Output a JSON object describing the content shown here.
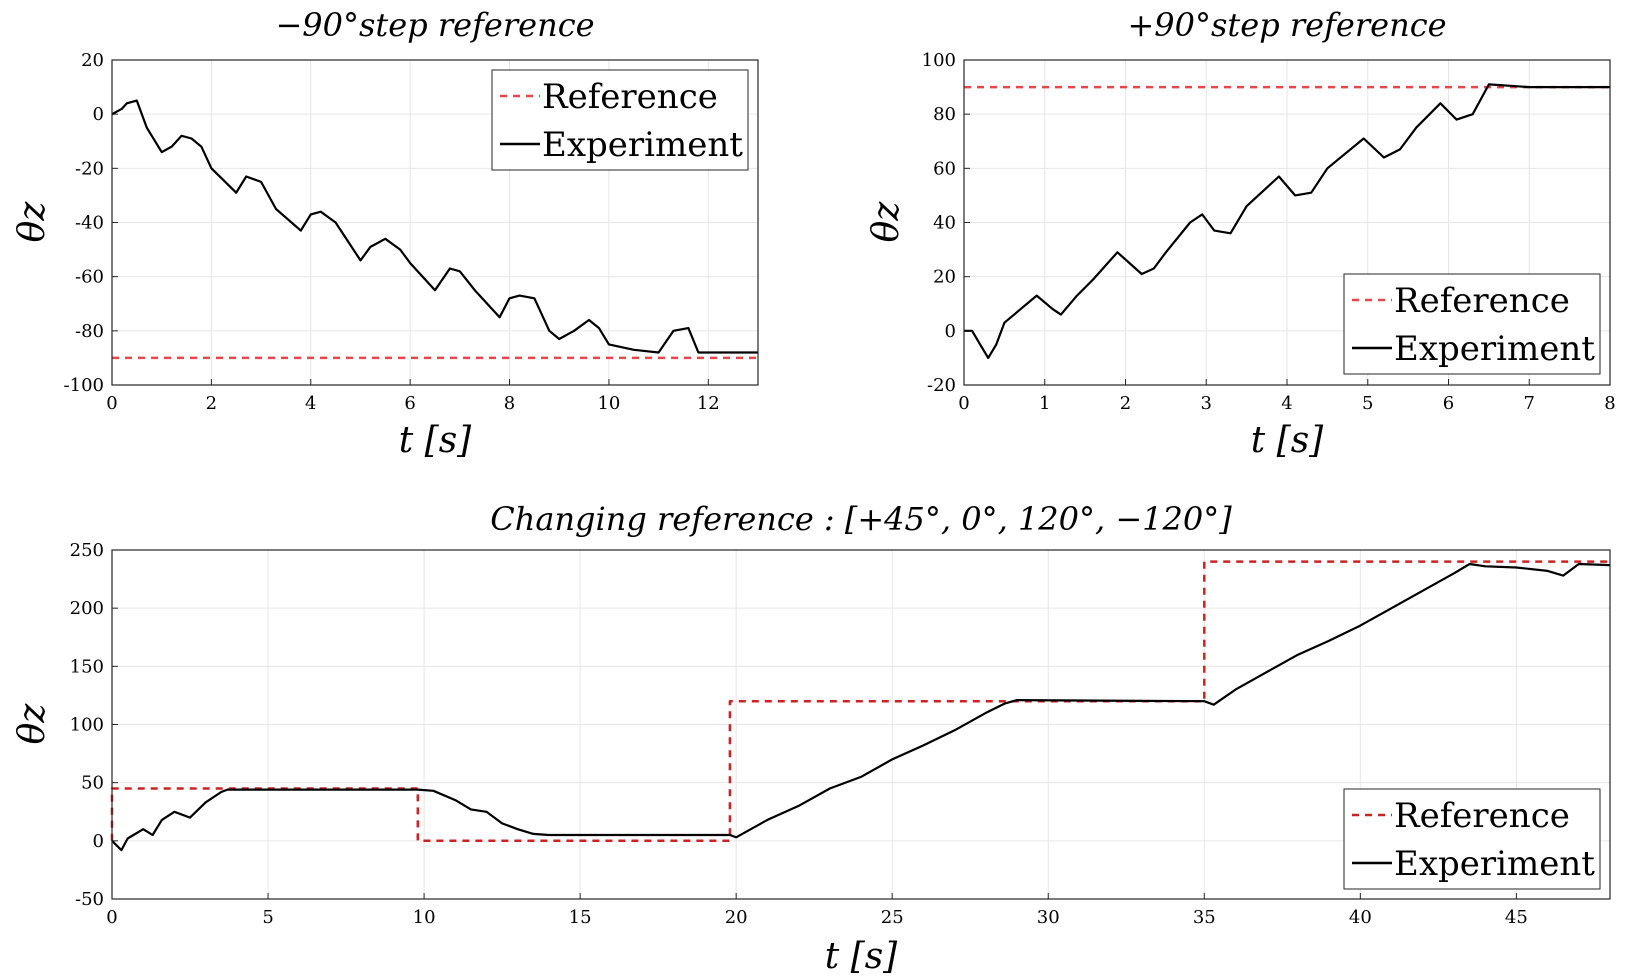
{
  "chart_data": [
    {
      "type": "line",
      "title": "−90°step reference",
      "xlabel": "t [s]",
      "ylabel": "θz",
      "xlim": [
        0,
        13
      ],
      "ylim": [
        -100,
        20
      ],
      "xticks": [
        0,
        2,
        4,
        6,
        8,
        10,
        12
      ],
      "xtick_labels": [
        "0",
        "2",
        "4",
        "6",
        "8",
        "10",
        "12"
      ],
      "yticks": [
        -100,
        -80,
        -60,
        -40,
        -20,
        0,
        20
      ],
      "ytick_labels": [
        "-100",
        "-80",
        "-60",
        "-40",
        "-20",
        "0",
        "20"
      ],
      "grid": true,
      "legend": "top-right",
      "series": [
        {
          "name": "Reference",
          "color": "#e8464a",
          "style": "dashed",
          "x": [
            0,
            13
          ],
          "y": [
            -90,
            -90
          ]
        },
        {
          "name": "Experiment",
          "color": "#000000",
          "style": "solid",
          "x": [
            0,
            0.2,
            0.3,
            0.5,
            0.7,
            1.0,
            1.2,
            1.4,
            1.6,
            1.8,
            2.0,
            2.5,
            2.7,
            3.0,
            3.3,
            3.8,
            4.0,
            4.2,
            4.5,
            5.0,
            5.2,
            5.5,
            5.8,
            6.0,
            6.5,
            6.8,
            7.0,
            7.3,
            7.8,
            8.0,
            8.2,
            8.5,
            8.8,
            9.0,
            9.3,
            9.6,
            9.8,
            10.0,
            10.5,
            11.0,
            11.3,
            11.6,
            11.8,
            12.0,
            12.5,
            13.0
          ],
          "y": [
            0,
            2,
            4,
            5,
            -5,
            -14,
            -12,
            -8,
            -9,
            -12,
            -20,
            -29,
            -23,
            -25,
            -35,
            -43,
            -37,
            -36,
            -40,
            -54,
            -49,
            -46,
            -50,
            -55,
            -65,
            -57,
            -58,
            -65,
            -75,
            -68,
            -67,
            -68,
            -80,
            -83,
            -80,
            -76,
            -79,
            -85,
            -87,
            -88,
            -80,
            -79,
            -88,
            -88,
            -88,
            -88
          ]
        }
      ]
    },
    {
      "type": "line",
      "title": "+90°step reference",
      "xlabel": "t [s]",
      "ylabel": "θz",
      "xlim": [
        0,
        8
      ],
      "ylim": [
        -20,
        100
      ],
      "xticks": [
        0,
        1,
        2,
        3,
        4,
        5,
        6,
        7,
        8
      ],
      "xtick_labels": [
        "0",
        "1",
        "2",
        "3",
        "4",
        "5",
        "6",
        "7",
        "8"
      ],
      "yticks": [
        -20,
        0,
        20,
        40,
        60,
        80,
        100
      ],
      "ytick_labels": [
        "-20",
        "0",
        "20",
        "40",
        "60",
        "80",
        "100"
      ],
      "grid": true,
      "legend": "bottom-right",
      "series": [
        {
          "name": "Reference",
          "color": "#e8464a",
          "style": "dashed",
          "x": [
            0,
            8
          ],
          "y": [
            90,
            90
          ]
        },
        {
          "name": "Experiment",
          "color": "#000000",
          "style": "solid",
          "x": [
            0,
            0.1,
            0.2,
            0.3,
            0.4,
            0.5,
            0.7,
            0.9,
            1.1,
            1.2,
            1.4,
            1.6,
            1.9,
            2.2,
            2.35,
            2.5,
            2.8,
            2.95,
            3.1,
            3.3,
            3.5,
            3.9,
            4.1,
            4.3,
            4.5,
            4.95,
            5.2,
            5.4,
            5.6,
            5.9,
            6.1,
            6.3,
            6.5,
            7.0,
            8.0
          ],
          "y": [
            0,
            0,
            -5,
            -10,
            -5,
            3,
            8,
            13,
            8,
            6,
            13,
            19,
            29,
            21,
            23,
            29,
            40,
            43,
            37,
            36,
            46,
            57,
            50,
            51,
            60,
            71,
            64,
            67,
            75,
            84,
            78,
            80,
            91,
            90,
            90
          ]
        }
      ]
    },
    {
      "type": "line",
      "title": "Changing reference : [+45°, 0°, 120°, −120°]",
      "xlabel": "t [s]",
      "ylabel": "θz",
      "xlim": [
        0,
        48
      ],
      "ylim": [
        -50,
        250
      ],
      "xticks": [
        0,
        5,
        10,
        15,
        20,
        25,
        30,
        35,
        40,
        45
      ],
      "xtick_labels": [
        "0",
        "5",
        "10",
        "15",
        "20",
        "25",
        "30",
        "35",
        "40",
        "45"
      ],
      "yticks": [
        -50,
        0,
        50,
        100,
        150,
        200,
        250
      ],
      "ytick_labels": [
        "-50",
        "0",
        "50",
        "100",
        "150",
        "200",
        "250"
      ],
      "grid": true,
      "legend": "bottom-right",
      "series": [
        {
          "name": "Reference",
          "color": "#cc2222",
          "style": "dashed",
          "x": [
            0,
            0,
            9.8,
            9.8,
            19.8,
            19.8,
            35,
            35,
            48
          ],
          "y": [
            0,
            45,
            45,
            0,
            0,
            120,
            120,
            240,
            240
          ]
        },
        {
          "name": "Experiment",
          "color": "#000000",
          "style": "solid",
          "x": [
            0,
            0.3,
            0.5,
            1.0,
            1.3,
            1.6,
            2.0,
            2.5,
            3.0,
            3.5,
            3.7,
            5.0,
            9.8,
            10.3,
            11.0,
            11.5,
            12.0,
            12.5,
            13.0,
            13.5,
            14.0,
            19.8,
            20.0,
            21.0,
            22.0,
            23.0,
            24.0,
            25.0,
            26.0,
            27.0,
            28.0,
            28.6,
            29.0,
            35.0,
            35.3,
            36.0,
            37.0,
            38.0,
            39.0,
            40.0,
            41.0,
            42.0,
            43.0,
            43.5,
            44.0,
            45.0,
            46.0,
            46.5,
            47.0,
            48.0
          ],
          "y": [
            0,
            -8,
            2,
            10,
            5,
            18,
            25,
            20,
            33,
            42,
            44,
            44,
            44,
            43,
            35,
            27,
            25,
            15,
            10,
            6,
            5,
            5,
            3,
            18,
            30,
            45,
            55,
            70,
            82,
            95,
            110,
            118,
            121,
            120,
            117,
            130,
            145,
            160,
            172,
            185,
            200,
            215,
            230,
            238,
            236,
            235,
            232,
            228,
            238,
            237
          ]
        }
      ]
    }
  ]
}
